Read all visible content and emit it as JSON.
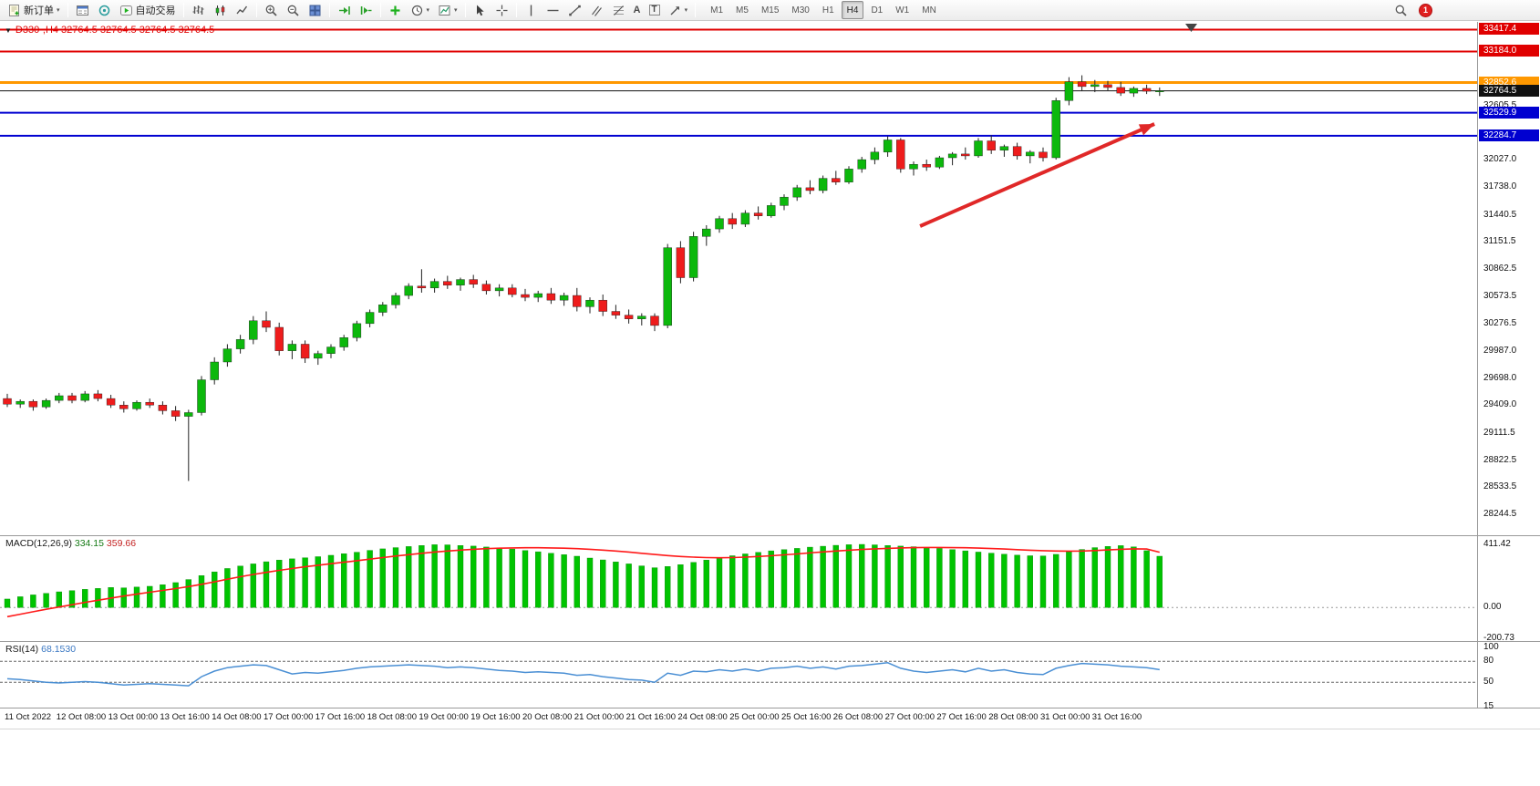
{
  "toolbar": {
    "new_order_label": "新订单",
    "autotrading_label": "自动交易",
    "timeframes": [
      "M1",
      "M5",
      "M15",
      "M30",
      "H1",
      "H4",
      "D1",
      "W1",
      "MN"
    ],
    "active_timeframe": "H4",
    "notification_count": "1"
  },
  "icons": {
    "caret": "▾",
    "collapsed_panel": "▼",
    "text_tool_glyph": "A",
    "label_tool_glyph": "T"
  },
  "chart": {
    "title": "D330-,H4 32764.5 32764.5 32764.5 32764.5"
  },
  "indicators": {
    "macd": {
      "label": "MACD(12,26,9)",
      "value_main": "334.15",
      "value_signal": "359.66"
    },
    "rsi": {
      "label": "RSI(14)",
      "value": "68.1530"
    }
  },
  "chart_data": [
    {
      "name": "price",
      "type": "candlestick",
      "timeframe": "H4",
      "ylim": [
        28021,
        33500
      ],
      "x_labels": [
        "11 Oct 2022",
        "12 Oct 08:00",
        "13 Oct 00:00",
        "13 Oct 16:00",
        "14 Oct 08:00",
        "17 Oct 00:00",
        "17 Oct 16:00",
        "18 Oct 08:00",
        "19 Oct 00:00",
        "19 Oct 16:00",
        "20 Oct 08:00",
        "21 Oct 00:00",
        "21 Oct 16:00",
        "24 Oct 08:00",
        "25 Oct 00:00",
        "25 Oct 16:00",
        "26 Oct 08:00",
        "27 Oct 00:00",
        "27 Oct 16:00",
        "28 Oct 08:00",
        "31 Oct 00:00",
        "31 Oct 16:00"
      ],
      "axis_ticks": [
        "32605.5",
        "32027.0",
        "31738.0",
        "31440.5",
        "31151.5",
        "30862.5",
        "30573.5",
        "30276.5",
        "29987.0",
        "29698.0",
        "29409.0",
        "29111.5",
        "28822.5",
        "28533.5",
        "28244.5"
      ],
      "levels": [
        {
          "value": 33417.4,
          "label": "33417.4",
          "color": "#e00000",
          "width": 2,
          "style": "red"
        },
        {
          "value": 33184.0,
          "label": "33184.0",
          "color": "#e00000",
          "width": 2,
          "style": "red"
        },
        {
          "value": 32852.6,
          "label": "32852.6",
          "color": "#ff9800",
          "width": 3,
          "style": "orange"
        },
        {
          "value": 32764.5,
          "label": "32764.5",
          "color": "#111111",
          "width": 1,
          "style": "bid"
        },
        {
          "value": 32529.9,
          "label": "32529.9",
          "color": "#0000d0",
          "width": 2,
          "style": "blue"
        },
        {
          "value": 32284.7,
          "label": "32284.7",
          "color": "#0000d0",
          "width": 2,
          "style": "blue"
        }
      ],
      "annotations": [
        {
          "type": "arrow",
          "from": [
            70.5,
            31320
          ],
          "to": [
            88.6,
            32410
          ],
          "color": "#e02828"
        }
      ],
      "candles": [
        [
          29480,
          29530,
          29390,
          29420
        ],
        [
          29420,
          29470,
          29380,
          29450
        ],
        [
          29450,
          29470,
          29350,
          29390
        ],
        [
          29390,
          29480,
          29370,
          29460
        ],
        [
          29460,
          29540,
          29430,
          29510
        ],
        [
          29510,
          29540,
          29430,
          29460
        ],
        [
          29460,
          29560,
          29440,
          29530
        ],
        [
          29530,
          29570,
          29450,
          29480
        ],
        [
          29480,
          29520,
          29380,
          29410
        ],
        [
          29410,
          29450,
          29330,
          29370
        ],
        [
          29370,
          29460,
          29350,
          29440
        ],
        [
          29440,
          29480,
          29380,
          29410
        ],
        [
          29410,
          29450,
          29310,
          29350
        ],
        [
          29350,
          29400,
          29240,
          29290
        ],
        [
          29290,
          29360,
          28600,
          29330
        ],
        [
          29330,
          29720,
          29300,
          29680
        ],
        [
          29680,
          29920,
          29630,
          29870
        ],
        [
          29870,
          30060,
          29820,
          30010
        ],
        [
          30010,
          30160,
          29960,
          30110
        ],
        [
          30110,
          30360,
          30060,
          30310
        ],
        [
          30310,
          30410,
          30190,
          30240
        ],
        [
          30240,
          30290,
          29940,
          29990
        ],
        [
          29990,
          30100,
          29900,
          30060
        ],
        [
          30060,
          30100,
          29860,
          29910
        ],
        [
          29910,
          29990,
          29840,
          29960
        ],
        [
          29960,
          30060,
          29910,
          30030
        ],
        [
          30030,
          30160,
          29990,
          30130
        ],
        [
          30130,
          30310,
          30090,
          30280
        ],
        [
          30280,
          30430,
          30240,
          30400
        ],
        [
          30400,
          30510,
          30360,
          30480
        ],
        [
          30480,
          30610,
          30440,
          30580
        ],
        [
          30580,
          30710,
          30540,
          30680
        ],
        [
          30680,
          30860,
          30610,
          30660
        ],
        [
          30660,
          30760,
          30610,
          30730
        ],
        [
          30730,
          30790,
          30650,
          30690
        ],
        [
          30690,
          30770,
          30630,
          30750
        ],
        [
          30750,
          30800,
          30660,
          30700
        ],
        [
          30700,
          30740,
          30590,
          30630
        ],
        [
          30630,
          30700,
          30570,
          30660
        ],
        [
          30660,
          30700,
          30560,
          30590
        ],
        [
          30590,
          30650,
          30520,
          30560
        ],
        [
          30560,
          30630,
          30510,
          30600
        ],
        [
          30600,
          30660,
          30490,
          30530
        ],
        [
          30530,
          30610,
          30470,
          30580
        ],
        [
          30580,
          30660,
          30410,
          30460
        ],
        [
          30460,
          30560,
          30390,
          30530
        ],
        [
          30530,
          30590,
          30360,
          30410
        ],
        [
          30410,
          30480,
          30330,
          30370
        ],
        [
          30370,
          30430,
          30280,
          30330
        ],
        [
          30330,
          30390,
          30260,
          30360
        ],
        [
          30360,
          30390,
          30200,
          30260
        ],
        [
          30260,
          31130,
          30230,
          31090
        ],
        [
          31090,
          31160,
          30710,
          30770
        ],
        [
          30770,
          31260,
          30730,
          31210
        ],
        [
          31210,
          31330,
          31110,
          31290
        ],
        [
          31290,
          31430,
          31250,
          31400
        ],
        [
          31400,
          31460,
          31290,
          31340
        ],
        [
          31340,
          31490,
          31310,
          31460
        ],
        [
          31460,
          31530,
          31390,
          31430
        ],
        [
          31430,
          31570,
          31410,
          31540
        ],
        [
          31540,
          31660,
          31490,
          31630
        ],
        [
          31630,
          31760,
          31590,
          31730
        ],
        [
          31730,
          31810,
          31660,
          31700
        ],
        [
          31700,
          31860,
          31670,
          31830
        ],
        [
          31830,
          31910,
          31760,
          31790
        ],
        [
          31790,
          31960,
          31770,
          31930
        ],
        [
          31930,
          32060,
          31890,
          32030
        ],
        [
          32030,
          32160,
          31980,
          32110
        ],
        [
          32110,
          32280,
          32060,
          32240
        ],
        [
          32240,
          32260,
          31890,
          31930
        ],
        [
          31930,
          32010,
          31860,
          31980
        ],
        [
          31980,
          32030,
          31910,
          31950
        ],
        [
          31950,
          32070,
          31930,
          32050
        ],
        [
          32050,
          32110,
          31970,
          32090
        ],
        [
          32090,
          32160,
          32030,
          32070
        ],
        [
          32070,
          32260,
          32050,
          32230
        ],
        [
          32230,
          32290,
          32090,
          32130
        ],
        [
          32130,
          32190,
          32060,
          32170
        ],
        [
          32170,
          32210,
          32030,
          32070
        ],
        [
          32070,
          32130,
          31990,
          32110
        ],
        [
          32110,
          32160,
          32010,
          32050
        ],
        [
          32050,
          32690,
          32030,
          32660
        ],
        [
          32660,
          32910,
          32610,
          32860
        ],
        [
          32860,
          32930,
          32760,
          32810
        ],
        [
          32810,
          32880,
          32750,
          32830
        ],
        [
          32830,
          32870,
          32770,
          32800
        ],
        [
          32800,
          32860,
          32710,
          32740
        ],
        [
          32740,
          32810,
          32700,
          32790
        ],
        [
          32790,
          32830,
          32730,
          32760
        ],
        [
          32760,
          32800,
          32710,
          32764.5
        ]
      ]
    },
    {
      "name": "macd",
      "type": "bar",
      "params": "(12,26,9)",
      "current_values": [
        334.15,
        359.66
      ],
      "axis_ticks": [
        "411.42",
        "0.00",
        "-200.73"
      ],
      "ylim": [
        -210,
        425
      ],
      "colors": {
        "histogram": "#00c400",
        "signal": "#ff1a1a"
      },
      "histogram": [
        55,
        70,
        82,
        92,
        102,
        110,
        118,
        124,
        130,
        128,
        133,
        138,
        148,
        162,
        182,
        208,
        232,
        254,
        270,
        284,
        298,
        309,
        317,
        324,
        331,
        340,
        350,
        360,
        372,
        382,
        390,
        397,
        404,
        409,
        408,
        404,
        400,
        394,
        388,
        381,
        371,
        363,
        353,
        344,
        334,
        322,
        310,
        297,
        284,
        271,
        259,
        267,
        279,
        294,
        309,
        324,
        337,
        349,
        359,
        369,
        377,
        385,
        393,
        399,
        405,
        409,
        411,
        408,
        404,
        400,
        396,
        391,
        385,
        377,
        369,
        361,
        354,
        347,
        341,
        337,
        336,
        346,
        362,
        378,
        390,
        398,
        403,
        395,
        370,
        334
      ],
      "signal": [
        -60,
        -44,
        -28,
        -12,
        3,
        18,
        33,
        47,
        61,
        74,
        87,
        99,
        111,
        123,
        136,
        151,
        167,
        184,
        200,
        215,
        229,
        242,
        254,
        265,
        275,
        285,
        295,
        305,
        315,
        325,
        335,
        344,
        353,
        361,
        368,
        374,
        379,
        383,
        386,
        388,
        389,
        389,
        388,
        386,
        383,
        379,
        374,
        368,
        361,
        353,
        345,
        338,
        332,
        328,
        325,
        324,
        325,
        328,
        332,
        337,
        343,
        349,
        356,
        362,
        368,
        373,
        378,
        382,
        385,
        388,
        390,
        391,
        391,
        390,
        389,
        387,
        384,
        381,
        377,
        373,
        370,
        368,
        367,
        368,
        371,
        375,
        379,
        382,
        381,
        360
      ]
    },
    {
      "name": "rsi",
      "type": "line",
      "params": "(14)",
      "current_value": 68.153,
      "axis_ticks": [
        "100",
        "80",
        "50",
        "15"
      ],
      "levels": [
        80,
        50
      ],
      "ylim": [
        15,
        103
      ],
      "color": "#4a8fd4",
      "values": [
        55,
        54,
        52,
        50,
        49,
        50,
        51,
        50,
        48,
        46,
        47,
        48,
        47,
        46,
        45,
        58,
        66,
        71,
        73,
        75,
        74,
        68,
        62,
        64,
        63,
        65,
        67,
        70,
        72,
        73,
        74,
        75,
        74,
        73,
        71,
        72,
        71,
        69,
        67,
        66,
        64,
        65,
        64,
        63,
        60,
        61,
        58,
        56,
        54,
        53,
        50,
        63,
        60,
        66,
        65,
        68,
        66,
        69,
        66,
        70,
        71,
        73,
        70,
        72,
        69,
        73,
        74,
        76,
        78,
        70,
        66,
        64,
        66,
        68,
        65,
        70,
        66,
        68,
        64,
        62,
        61,
        70,
        74,
        77,
        76,
        75,
        73,
        72,
        71,
        68.15
      ]
    }
  ]
}
